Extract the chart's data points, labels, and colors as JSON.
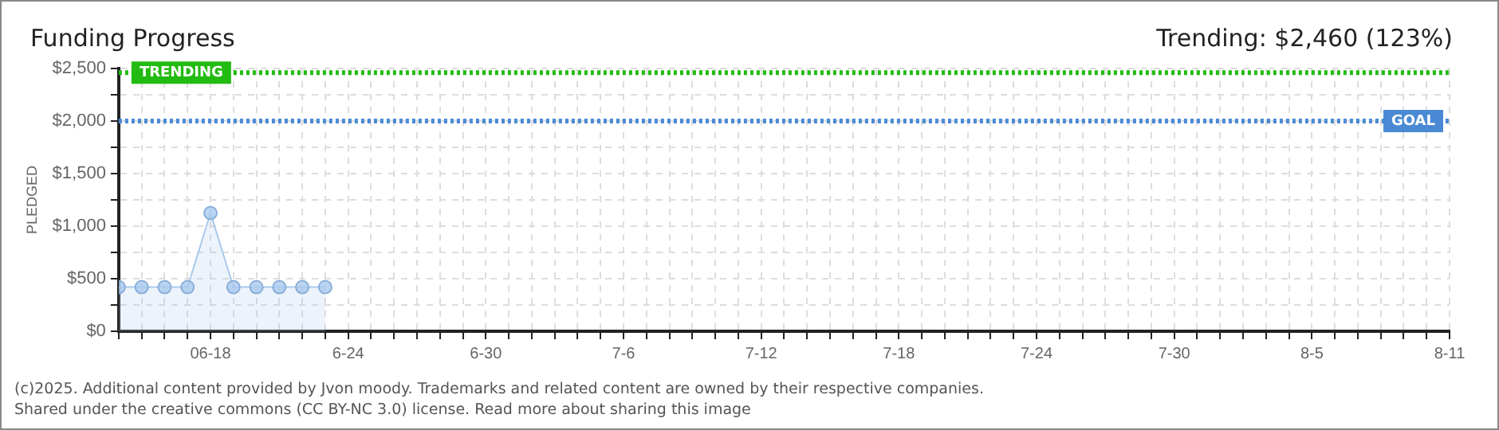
{
  "chart_data": {
    "type": "area",
    "title": "Funding Progress",
    "subtitle": "Trending: $2,460 (123%)",
    "ylabel": "PLEDGED",
    "x": [
      "--06-14",
      "--06-15",
      "--06-16",
      "--06-17",
      "--06-18",
      "--06-19",
      "--06-20",
      "--06-21",
      "--06-22",
      "--06-23"
    ],
    "series": [
      {
        "color": "#a9c9ee",
        "values": [
          420,
          420,
          420,
          420,
          1125,
          420,
          420,
          420,
          420,
          420
        ]
      }
    ],
    "xlim": [
      "--06-14",
      "--08-11"
    ],
    "xticks": [
      {
        "value": "--06-14",
        "label": null
      },
      {
        "value": "--06-15",
        "label": null
      },
      {
        "value": "--06-16",
        "label": null
      },
      {
        "value": "--06-17",
        "label": null
      },
      {
        "value": "--06-18",
        "label": "06-18"
      },
      {
        "value": "--06-19",
        "label": null
      },
      {
        "value": "--06-20",
        "label": null
      },
      {
        "value": "--06-21",
        "label": null
      },
      {
        "value": "--06-22",
        "label": null
      },
      {
        "value": "--06-23",
        "label": null
      },
      {
        "value": "--06-24",
        "label": "6-24"
      },
      {
        "value": "--06-25",
        "label": null
      },
      {
        "value": "--06-26",
        "label": null
      },
      {
        "value": "--06-27",
        "label": null
      },
      {
        "value": "--06-28",
        "label": null
      },
      {
        "value": "--06-29",
        "label": null
      },
      {
        "value": "--06-30",
        "label": "6-30"
      },
      {
        "value": "--07-01",
        "label": null
      },
      {
        "value": "--07-02",
        "label": null
      },
      {
        "value": "--07-03",
        "label": null
      },
      {
        "value": "--07-04",
        "label": null
      },
      {
        "value": "--07-05",
        "label": null
      },
      {
        "value": "--07-06",
        "label": "7-6"
      },
      {
        "value": "--07-07",
        "label": null
      },
      {
        "value": "--07-08",
        "label": null
      },
      {
        "value": "--07-09",
        "label": null
      },
      {
        "value": "--07-10",
        "label": null
      },
      {
        "value": "--07-11",
        "label": null
      },
      {
        "value": "--07-12",
        "label": "7-12"
      },
      {
        "value": "--07-13",
        "label": null
      },
      {
        "value": "--07-14",
        "label": null
      },
      {
        "value": "--07-15",
        "label": null
      },
      {
        "value": "--07-16",
        "label": null
      },
      {
        "value": "--07-17",
        "label": null
      },
      {
        "value": "--07-18",
        "label": "7-18"
      },
      {
        "value": "--07-19",
        "label": null
      },
      {
        "value": "--07-20",
        "label": null
      },
      {
        "value": "--07-21",
        "label": null
      },
      {
        "value": "--07-22",
        "label": null
      },
      {
        "value": "--07-23",
        "label": null
      },
      {
        "value": "--07-24",
        "label": "7-24"
      },
      {
        "value": "--07-25",
        "label": null
      },
      {
        "value": "--07-26",
        "label": null
      },
      {
        "value": "--07-27",
        "label": null
      },
      {
        "value": "--07-28",
        "label": null
      },
      {
        "value": "--07-29",
        "label": null
      },
      {
        "value": "--07-30",
        "label": "7-30"
      },
      {
        "value": "--07-31",
        "label": null
      },
      {
        "value": "--08-01",
        "label": null
      },
      {
        "value": "--08-02",
        "label": null
      },
      {
        "value": "--08-03",
        "label": null
      },
      {
        "value": "--08-04",
        "label": null
      },
      {
        "value": "--08-05",
        "label": "8-5"
      },
      {
        "value": "--08-06",
        "label": null
      },
      {
        "value": "--08-07",
        "label": null
      },
      {
        "value": "--08-08",
        "label": null
      },
      {
        "value": "--08-09",
        "label": null
      },
      {
        "value": "--08-10",
        "label": null
      },
      {
        "value": "--08-11",
        "label": "8-11"
      }
    ],
    "ylim": [
      0,
      2500
    ],
    "yticks": [
      {
        "value": 0,
        "label": "$0"
      },
      {
        "value": 250,
        "label": null
      },
      {
        "value": 500,
        "label": "$500"
      },
      {
        "value": 750,
        "label": null
      },
      {
        "value": 1000,
        "label": "$1,000"
      },
      {
        "value": 1250,
        "label": null
      },
      {
        "value": 1500,
        "label": "$1,500"
      },
      {
        "value": 1750,
        "label": null
      },
      {
        "value": 2000,
        "label": "$2,000"
      },
      {
        "value": 2250,
        "label": null
      },
      {
        "value": 2500,
        "label": "$2,500"
      }
    ],
    "ref_lines": [
      {
        "axis": "y",
        "value": 2460,
        "label": "TRENDING",
        "color": "#22bb11",
        "line_style": "dotted"
      },
      {
        "axis": "y",
        "value": 2000,
        "label": "GOAL",
        "color": "#4a8ad4",
        "line_style": "dotted"
      }
    ],
    "annotations": [
      "(c)2025. Additional content provided by Jvon moody. Trademarks and related content are owned by their respective companies.",
      "Shared under the creative commons (CC BY-NC 3.0) license. Read more about sharing this image"
    ],
    "grid": true,
    "legend": false,
    "marker": "circle",
    "line_style": "solid"
  }
}
